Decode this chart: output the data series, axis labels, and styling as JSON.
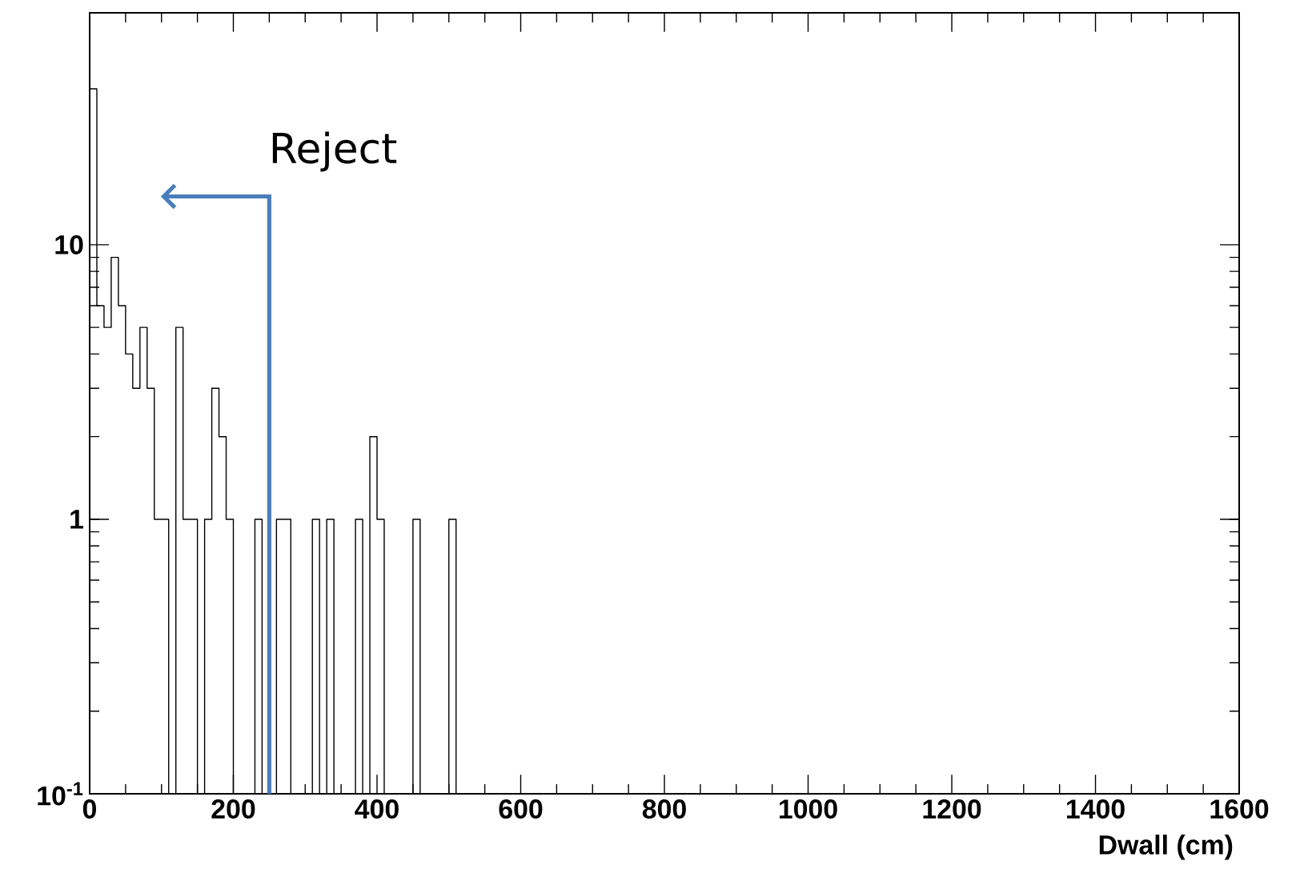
{
  "chart_data": {
    "type": "histogram",
    "xlabel": "Dwall (cm)",
    "bins": [
      0,
      10,
      20,
      30,
      40,
      50,
      60,
      70,
      80,
      90,
      100,
      110,
      120,
      130,
      140,
      150,
      160,
      170,
      180,
      190,
      200,
      210,
      220,
      230,
      240,
      250,
      260,
      270,
      280,
      290,
      300,
      310,
      320,
      330,
      340,
      350,
      360,
      370,
      380,
      390,
      400,
      410,
      420,
      430,
      440,
      450,
      460,
      470,
      480,
      490,
      500,
      510
    ],
    "values": [
      37,
      6,
      5,
      9,
      6,
      4,
      3,
      5,
      3,
      1,
      1,
      null,
      5,
      1,
      1,
      null,
      1,
      3,
      2,
      1,
      null,
      null,
      null,
      1,
      null,
      null,
      1,
      1,
      null,
      null,
      null,
      1,
      null,
      1,
      null,
      null,
      null,
      1,
      null,
      2,
      1,
      null,
      null,
      null,
      null,
      1,
      null,
      null,
      null,
      null,
      1
    ],
    "color": "#000000",
    "log": "y",
    "grid": false,
    "xlim": [
      0,
      1600
    ],
    "xticks": [
      0,
      200,
      400,
      600,
      800,
      1000,
      1200,
      1400,
      1600
    ],
    "ylim": [
      0.1,
      70
    ],
    "yticks": [
      {
        "value": 0.1,
        "label": "10$^{-1}$"
      },
      1,
      10
    ],
    "ref_lines": [
      {
        "axis": "x",
        "value": 250,
        "label": "Reject",
        "color": "#4a7ebb"
      }
    ]
  }
}
